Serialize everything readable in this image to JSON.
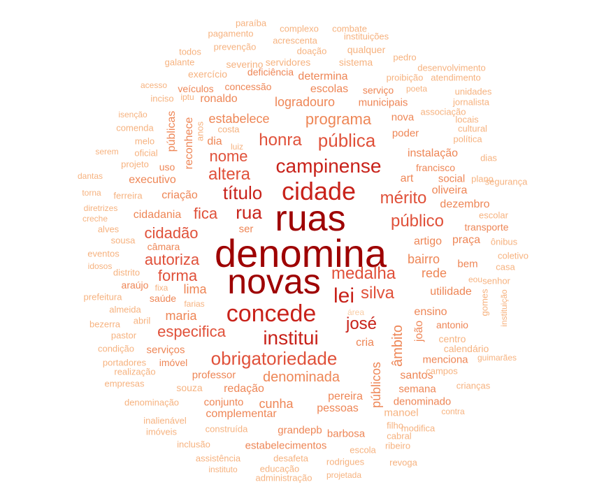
{
  "colors": {
    "c1": "#9e0000",
    "c2": "#c8221a",
    "c3": "#e0513a",
    "c4": "#ee8656",
    "c5": "#f6b27f",
    "c6": "#f9cda6"
  },
  "words": [
    {
      "text": "denomina",
      "color": "c1"
    },
    {
      "text": "ruas",
      "color": "c1"
    },
    {
      "text": "novas",
      "color": "c1"
    },
    {
      "text": "cidade",
      "color": "c2"
    },
    {
      "text": "concede",
      "color": "c2"
    },
    {
      "text": "campinense",
      "color": "c2"
    },
    {
      "text": "institui",
      "color": "c2"
    },
    {
      "text": "título",
      "color": "c2"
    },
    {
      "text": "rua",
      "color": "c2"
    },
    {
      "text": "lei",
      "color": "c2"
    },
    {
      "text": "josé",
      "color": "c2"
    },
    {
      "text": "honra",
      "color": "c3"
    },
    {
      "text": "pública",
      "color": "c3"
    },
    {
      "text": "mérito",
      "color": "c3"
    },
    {
      "text": "público",
      "color": "c3"
    },
    {
      "text": "medalha",
      "color": "c3"
    },
    {
      "text": "silva",
      "color": "c3"
    },
    {
      "text": "altera",
      "color": "c3"
    },
    {
      "text": "nome",
      "color": "c3"
    },
    {
      "text": "fica",
      "color": "c3"
    },
    {
      "text": "cidadão",
      "color": "c3"
    },
    {
      "text": "autoriza",
      "color": "c3"
    },
    {
      "text": "forma",
      "color": "c3"
    },
    {
      "text": "especifica",
      "color": "c3"
    },
    {
      "text": "obrigatoriedade",
      "color": "c3"
    },
    {
      "text": "programa",
      "color": "c4"
    },
    {
      "text": "estabelece",
      "color": "c4"
    },
    {
      "text": "logradouro",
      "color": "c4"
    },
    {
      "text": "ronaldo",
      "color": "c4"
    },
    {
      "text": "dia",
      "color": "c4"
    },
    {
      "text": "cidadania",
      "color": "c4"
    },
    {
      "text": "criação",
      "color": "c4"
    },
    {
      "text": "executivo",
      "color": "c4"
    },
    {
      "text": "lima",
      "color": "c4"
    },
    {
      "text": "maria",
      "color": "c4"
    },
    {
      "text": "bairro",
      "color": "c4"
    },
    {
      "text": "artigo",
      "color": "c4"
    },
    {
      "text": "rede",
      "color": "c4"
    },
    {
      "text": "cria",
      "color": "c4"
    },
    {
      "text": "denominada",
      "color": "c4"
    },
    {
      "text": "redação",
      "color": "c4"
    },
    {
      "text": "cunha",
      "color": "c4"
    },
    {
      "text": "ensino",
      "color": "c4"
    },
    {
      "text": "santos",
      "color": "c4"
    },
    {
      "text": "art",
      "color": "c4"
    },
    {
      "text": "social",
      "color": "c4"
    },
    {
      "text": "instalação",
      "color": "c4"
    },
    {
      "text": "poder",
      "color": "c4"
    },
    {
      "text": "nova",
      "color": "c4"
    },
    {
      "text": "oliveira",
      "color": "c4"
    },
    {
      "text": "dezembro",
      "color": "c4"
    },
    {
      "text": "praça",
      "color": "c4"
    },
    {
      "text": "bem",
      "color": "c4"
    },
    {
      "text": "utilidade",
      "color": "c4"
    },
    {
      "text": "menciona",
      "color": "c4"
    },
    {
      "text": "pereira",
      "color": "c4"
    },
    {
      "text": "pessoas",
      "color": "c4"
    },
    {
      "text": "complementar",
      "color": "c4"
    },
    {
      "text": "conjunto",
      "color": "c4"
    },
    {
      "text": "professor",
      "color": "c4"
    },
    {
      "text": "serviços",
      "color": "c4"
    },
    {
      "text": "imóvel",
      "color": "c4"
    },
    {
      "text": "saúde",
      "color": "c4"
    },
    {
      "text": "araújo",
      "color": "c4"
    },
    {
      "text": "câmara",
      "color": "c4"
    },
    {
      "text": "escolas",
      "color": "c4"
    },
    {
      "text": "municipais",
      "color": "c4"
    },
    {
      "text": "concessão",
      "color": "c4"
    },
    {
      "text": "determina",
      "color": "c4"
    },
    {
      "text": "deficiência",
      "color": "c4"
    },
    {
      "text": "serviço",
      "color": "c4"
    },
    {
      "text": "estabelecimentos",
      "color": "c4"
    },
    {
      "text": "barbosa",
      "color": "c4"
    },
    {
      "text": "grandepb",
      "color": "c4"
    },
    {
      "text": "semana",
      "color": "c4"
    },
    {
      "text": "denominado",
      "color": "c4"
    },
    {
      "text": "antonio",
      "color": "c4"
    },
    {
      "text": "francisco",
      "color": "c4"
    },
    {
      "text": "transporte",
      "color": "c4"
    },
    {
      "text": "ser",
      "color": "c4"
    },
    {
      "text": "uso",
      "color": "c4"
    },
    {
      "text": "veículos",
      "color": "c4"
    },
    {
      "text": "exercício",
      "color": "c5"
    },
    {
      "text": "severino",
      "color": "c5"
    },
    {
      "text": "servidores",
      "color": "c5"
    },
    {
      "text": "sistema",
      "color": "c5"
    },
    {
      "text": "qualquer",
      "color": "c5"
    },
    {
      "text": "doação",
      "color": "c5"
    },
    {
      "text": "acrescenta",
      "color": "c5"
    },
    {
      "text": "prevenção",
      "color": "c5"
    },
    {
      "text": "pagamento",
      "color": "c5"
    },
    {
      "text": "complexo",
      "color": "c5"
    },
    {
      "text": "combate",
      "color": "c5"
    },
    {
      "text": "paraíba",
      "color": "c5"
    },
    {
      "text": "instituições",
      "color": "c5"
    },
    {
      "text": "todos",
      "color": "c5"
    },
    {
      "text": "galante",
      "color": "c5"
    },
    {
      "text": "pedro",
      "color": "c5"
    },
    {
      "text": "proibição",
      "color": "c5"
    },
    {
      "text": "desenvolvimento",
      "color": "c5"
    },
    {
      "text": "atendimento",
      "color": "c5"
    },
    {
      "text": "poeta",
      "color": "c5"
    },
    {
      "text": "unidades",
      "color": "c5"
    },
    {
      "text": "jornalista",
      "color": "c5"
    },
    {
      "text": "associação",
      "color": "c5"
    },
    {
      "text": "locais",
      "color": "c5"
    },
    {
      "text": "cultural",
      "color": "c5"
    },
    {
      "text": "política",
      "color": "c5"
    },
    {
      "text": "dias",
      "color": "c5"
    },
    {
      "text": "plano",
      "color": "c5"
    },
    {
      "text": "segurança",
      "color": "c5"
    },
    {
      "text": "escolar",
      "color": "c5"
    },
    {
      "text": "ônibus",
      "color": "c5"
    },
    {
      "text": "coletivo",
      "color": "c5"
    },
    {
      "text": "casa",
      "color": "c5"
    },
    {
      "text": "senhor",
      "color": "c5"
    },
    {
      "text": "eou",
      "color": "c5"
    },
    {
      "text": "gomes",
      "color": "c5"
    },
    {
      "text": "instituição",
      "color": "c5"
    },
    {
      "text": "centro",
      "color": "c5"
    },
    {
      "text": "calendário",
      "color": "c5"
    },
    {
      "text": "guimarães",
      "color": "c5"
    },
    {
      "text": "campos",
      "color": "c5"
    },
    {
      "text": "crianças",
      "color": "c5"
    },
    {
      "text": "contra",
      "color": "c5"
    },
    {
      "text": "modifica",
      "color": "c5"
    },
    {
      "text": "filho",
      "color": "c5"
    },
    {
      "text": "cabral",
      "color": "c5"
    },
    {
      "text": "ribeiro",
      "color": "c5"
    },
    {
      "text": "revoga",
      "color": "c5"
    },
    {
      "text": "escola",
      "color": "c5"
    },
    {
      "text": "rodrigues",
      "color": "c5"
    },
    {
      "text": "desafeta",
      "color": "c5"
    },
    {
      "text": "educação",
      "color": "c5"
    },
    {
      "text": "projetada",
      "color": "c5"
    },
    {
      "text": "administração",
      "color": "c5"
    },
    {
      "text": "assistência",
      "color": "c5"
    },
    {
      "text": "instituto",
      "color": "c5"
    },
    {
      "text": "inclusão",
      "color": "c5"
    },
    {
      "text": "imóveis",
      "color": "c5"
    },
    {
      "text": "construída",
      "color": "c5"
    },
    {
      "text": "inalienável",
      "color": "c5"
    },
    {
      "text": "manoel",
      "color": "c5"
    },
    {
      "text": "denominação",
      "color": "c5"
    },
    {
      "text": "empresas",
      "color": "c5"
    },
    {
      "text": "souza",
      "color": "c5"
    },
    {
      "text": "realização",
      "color": "c5"
    },
    {
      "text": "portadores",
      "color": "c5"
    },
    {
      "text": "condição",
      "color": "c5"
    },
    {
      "text": "pastor",
      "color": "c5"
    },
    {
      "text": "bezerra",
      "color": "c5"
    },
    {
      "text": "abril",
      "color": "c5"
    },
    {
      "text": "almeida",
      "color": "c5"
    },
    {
      "text": "prefeitura",
      "color": "c5"
    },
    {
      "text": "farias",
      "color": "c5"
    },
    {
      "text": "fixa",
      "color": "c5"
    },
    {
      "text": "distrito",
      "color": "c5"
    },
    {
      "text": "idosos",
      "color": "c5"
    },
    {
      "text": "eventos",
      "color": "c5"
    },
    {
      "text": "sousa",
      "color": "c5"
    },
    {
      "text": "alves",
      "color": "c5"
    },
    {
      "text": "creche",
      "color": "c5"
    },
    {
      "text": "diretrizes",
      "color": "c5"
    },
    {
      "text": "torna",
      "color": "c5"
    },
    {
      "text": "ferreira",
      "color": "c5"
    },
    {
      "text": "dantas",
      "color": "c5"
    },
    {
      "text": "serem",
      "color": "c5"
    },
    {
      "text": "projeto",
      "color": "c5"
    },
    {
      "text": "oficial",
      "color": "c5"
    },
    {
      "text": "melo",
      "color": "c5"
    },
    {
      "text": "comenda",
      "color": "c5"
    },
    {
      "text": "isenção",
      "color": "c5"
    },
    {
      "text": "inciso",
      "color": "c5"
    },
    {
      "text": "iptu",
      "color": "c5"
    },
    {
      "text": "acesso",
      "color": "c5"
    },
    {
      "text": "públicas",
      "color": "c4"
    },
    {
      "text": "reconhece",
      "color": "c4"
    },
    {
      "text": "anos",
      "color": "c5"
    },
    {
      "text": "costa",
      "color": "c5"
    },
    {
      "text": "luiz",
      "color": "c5"
    },
    {
      "text": "públicos",
      "color": "c4"
    },
    {
      "text": "âmbito",
      "color": "c4"
    },
    {
      "text": "joão",
      "color": "c4"
    },
    {
      "text": "área",
      "color": "c6"
    }
  ]
}
